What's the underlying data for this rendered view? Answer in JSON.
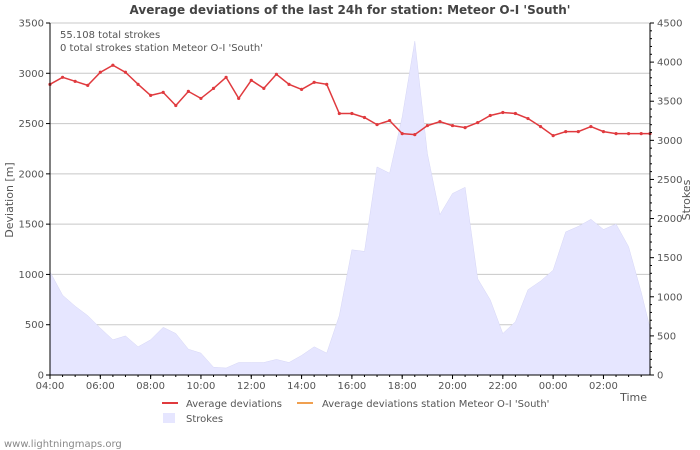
{
  "title": "Average deviations of the last 24h for station: Meteor O-I  'South'",
  "info_lines": [
    "55.108 total strokes",
    "0 total strokes station Meteor O-I  'South'"
  ],
  "watermark": "www.lightningmaps.org",
  "colors": {
    "deviation": "#e03a3e",
    "station": "#f0a050",
    "strokes_fill": "#e6e6ff",
    "strokes_edge": "#d6d6f6",
    "grid": "#c8c8c8",
    "axis": "#000000"
  },
  "chart_data": {
    "type": "line+area",
    "title": "Average deviations of the last 24h for station: Meteor O-I  'South'",
    "xlabel": "Time",
    "ylabel": "Deviation  [m]",
    "y2label": "Strokes",
    "x_range_hours": [
      4.0,
      27.85
    ],
    "ylim": [
      0,
      3500
    ],
    "y2lim": [
      0,
      4500
    ],
    "x_ticks": [
      {
        "h": 4,
        "label": "04:00"
      },
      {
        "h": 6,
        "label": "06:00"
      },
      {
        "h": 8,
        "label": "08:00"
      },
      {
        "h": 10,
        "label": "10:00"
      },
      {
        "h": 12,
        "label": "12:00"
      },
      {
        "h": 14,
        "label": "14:00"
      },
      {
        "h": 16,
        "label": "16:00"
      },
      {
        "h": 18,
        "label": "18:00"
      },
      {
        "h": 20,
        "label": "20:00"
      },
      {
        "h": 22,
        "label": "22:00"
      },
      {
        "h": 24,
        "label": "00:00"
      },
      {
        "h": 26,
        "label": "02:00"
      }
    ],
    "y_ticks": [
      0,
      500,
      1000,
      1500,
      2000,
      2500,
      3000,
      3500
    ],
    "y2_ticks": [
      0,
      500,
      1000,
      1500,
      2000,
      2500,
      3000,
      3500,
      4000,
      4500
    ],
    "legend": [
      {
        "label": "Average deviations",
        "kind": "line",
        "color": "#e03a3e"
      },
      {
        "label": "Average deviations station Meteor O-I  'South'",
        "kind": "line",
        "color": "#f0a050"
      },
      {
        "label": "Strokes",
        "kind": "area",
        "color": "#e6e6ff"
      }
    ],
    "series": [
      {
        "name": "Average deviations",
        "axis": "left",
        "x": [
          4.0,
          4.5,
          5.0,
          5.5,
          6.0,
          6.5,
          7.0,
          7.5,
          8.0,
          8.5,
          9.0,
          9.5,
          10.0,
          10.5,
          11.0,
          11.5,
          12.0,
          12.5,
          13.0,
          13.5,
          14.0,
          14.5,
          15.0,
          15.5,
          16.0,
          16.5,
          17.0,
          17.5,
          18.0,
          18.5,
          19.0,
          19.5,
          20.0,
          20.5,
          21.0,
          21.5,
          22.0,
          22.5,
          23.0,
          23.5,
          24.0,
          24.5,
          25.0,
          25.5,
          26.0,
          26.5,
          27.0,
          27.5,
          27.85
        ],
        "values": [
          2890,
          2960,
          2920,
          2880,
          3010,
          3080,
          3010,
          2890,
          2780,
          2810,
          2680,
          2820,
          2750,
          2850,
          2960,
          2750,
          2930,
          2850,
          2990,
          2890,
          2840,
          2910,
          2890,
          2600,
          2600,
          2560,
          2490,
          2530,
          2400,
          2390,
          2480,
          2520,
          2480,
          2460,
          2510,
          2580,
          2610,
          2600,
          2550,
          2470,
          2380,
          2420,
          2420,
          2470,
          2420,
          2400,
          2400,
          2400,
          2400
        ]
      },
      {
        "name": "Strokes",
        "axis": "right",
        "x": [
          4.0,
          4.5,
          5.0,
          5.5,
          6.0,
          6.5,
          7.0,
          7.5,
          8.0,
          8.5,
          9.0,
          9.5,
          10.0,
          10.5,
          11.0,
          11.5,
          12.0,
          12.5,
          13.0,
          13.5,
          14.0,
          14.5,
          15.0,
          15.5,
          16.0,
          16.5,
          17.0,
          17.5,
          18.0,
          18.5,
          19.0,
          19.5,
          20.0,
          20.5,
          21.0,
          21.5,
          22.0,
          22.5,
          23.0,
          23.5,
          24.0,
          24.5,
          25.0,
          25.5,
          26.0,
          26.5,
          27.0,
          27.5,
          27.85
        ],
        "values": [
          1320,
          1020,
          880,
          760,
          600,
          450,
          500,
          360,
          450,
          610,
          530,
          330,
          280,
          100,
          90,
          160,
          160,
          160,
          200,
          160,
          250,
          360,
          280,
          760,
          1600,
          1580,
          2660,
          2580,
          3300,
          4270,
          2830,
          2050,
          2320,
          2400,
          1230,
          960,
          530,
          680,
          1090,
          1200,
          1340,
          1830,
          1900,
          1990,
          1860,
          1930,
          1640,
          1060,
          600
        ]
      },
      {
        "name": "Average deviations station Meteor O-I  'South'",
        "axis": "left",
        "x": [],
        "values": []
      }
    ]
  }
}
